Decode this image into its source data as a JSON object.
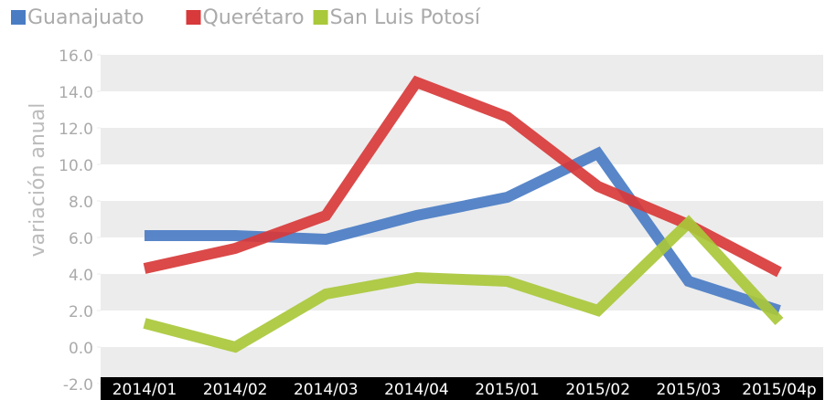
{
  "chart_data": {
    "type": "line",
    "y_label": "variación anual",
    "categories": [
      "2014/01",
      "2014/02",
      "2014/03",
      "2014/04",
      "2015/01",
      "2015/02",
      "2015/03",
      "2015/04p"
    ],
    "series": [
      {
        "name": "Guanajuato",
        "color": "#4a7cc4",
        "values": [
          6.1,
          6.1,
          5.9,
          7.2,
          8.2,
          10.6,
          3.6,
          2.0
        ]
      },
      {
        "name": "Querétaro",
        "color": "#d8393a",
        "values": [
          4.3,
          5.4,
          7.2,
          14.5,
          12.6,
          8.8,
          6.7,
          4.1
        ]
      },
      {
        "name": "San Luis Potosí",
        "color": "#a9c83a",
        "values": [
          1.3,
          0.0,
          2.9,
          3.8,
          3.6,
          2.0,
          6.8,
          1.4
        ]
      }
    ],
    "ylim": [
      -2,
      16
    ],
    "yticks": [
      {
        "value": -2,
        "label": "-2.0"
      },
      {
        "value": 0,
        "label": "0.0"
      },
      {
        "value": 2,
        "label": "2.0"
      },
      {
        "value": 4,
        "label": "4.0"
      },
      {
        "value": 6,
        "label": "6.0"
      },
      {
        "value": 8,
        "label": "8.0"
      },
      {
        "value": 10,
        "label": "10.0"
      },
      {
        "value": 12,
        "label": "12.0"
      },
      {
        "value": 14,
        "label": "14.0"
      },
      {
        "value": 16,
        "label": "16.0"
      }
    ],
    "grid": true,
    "legend": "top-left"
  }
}
